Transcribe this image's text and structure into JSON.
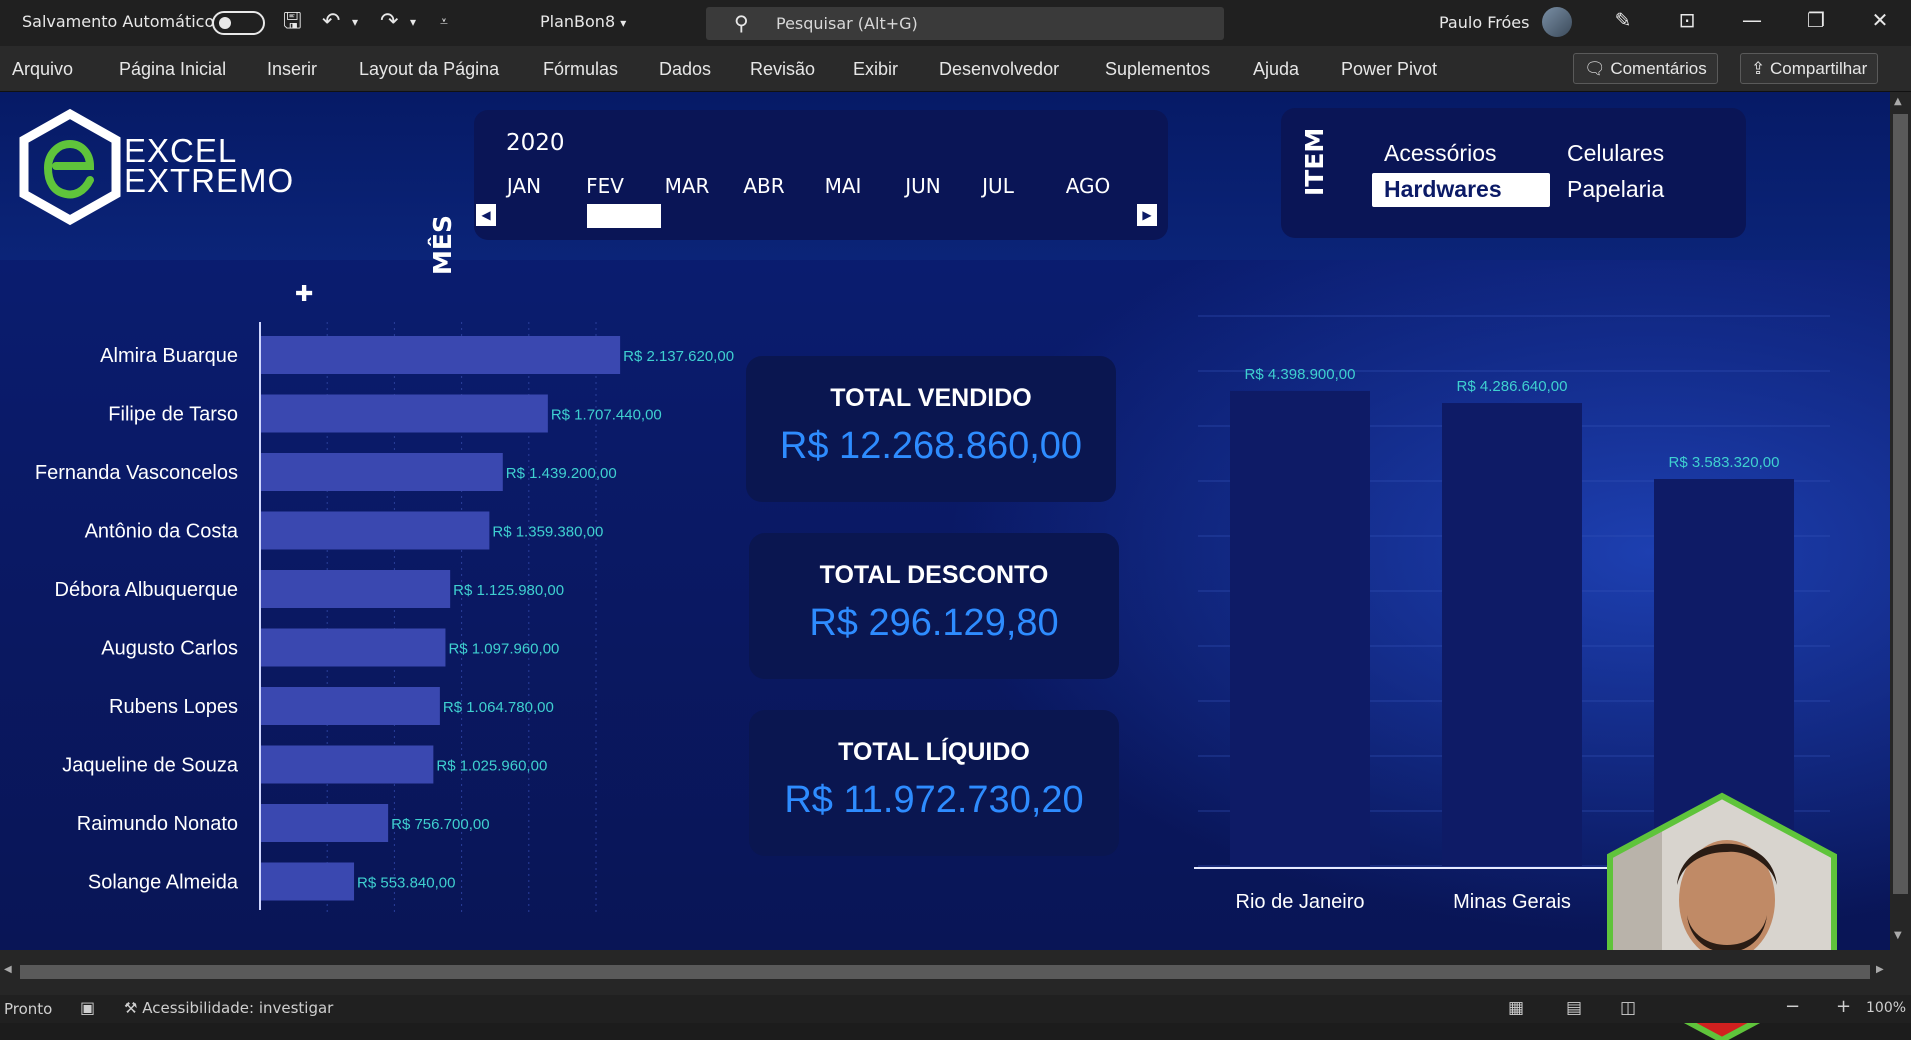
{
  "titlebar": {
    "autosave_label": "Salvamento Automático",
    "filename": "PlanBon8",
    "search_placeholder": "Pesquisar (Alt+G)",
    "user_name": "Paulo Fróes"
  },
  "ribbon": {
    "tabs": [
      "Arquivo",
      "Página Inicial",
      "Inserir",
      "Layout da Página",
      "Fórmulas",
      "Dados",
      "Revisão",
      "Exibir",
      "Desenvolvedor",
      "Suplementos",
      "Ajuda",
      "Power Pivot"
    ],
    "comments_label": "Comentários",
    "share_label": "Compartilhar"
  },
  "dashboard": {
    "logo_line1": "EXCEL",
    "logo_line2": "EXTREMO",
    "month_slicer_label": "MÊS",
    "year": "2020",
    "months": [
      "JAN",
      "FEV",
      "MAR",
      "ABR",
      "MAI",
      "JUN",
      "JUL",
      "AGO"
    ],
    "item_slicer_label": "ITEM",
    "items": [
      "Acessórios",
      "Celulares",
      "Hardwares",
      "Papelaria"
    ],
    "selected_item": "Hardwares",
    "kpis": [
      {
        "title": "TOTAL VENDIDO",
        "value": "R$ 12.268.860,00"
      },
      {
        "title": "TOTAL DESCONTO",
        "value": "R$ 296.129,80"
      },
      {
        "title": "TOTAL LÍQUIDO",
        "value": "R$ 11.972.730,20"
      }
    ]
  },
  "status": {
    "ready": "Pronto",
    "accessibility": "Acessibilidade: investigar",
    "zoom": "100%"
  },
  "colors": {
    "sheet_bg": "#0a1a68",
    "bar": "#3a48b0",
    "bar_label": "#3fd0d0",
    "kpi_value": "#2e8cff",
    "column": "#0e1b66",
    "brand_green": "#5fc43b"
  },
  "chart_data": [
    {
      "type": "bar",
      "orientation": "horizontal",
      "categories": [
        "Almira Buarque",
        "Filipe de Tarso",
        "Fernanda Vasconcelos",
        "Antônio da Costa",
        "Débora Albuquerque",
        "Augusto Carlos",
        "Rubens Lopes",
        "Jaqueline de Souza",
        "Raimundo Nonato",
        "Solange Almeida"
      ],
      "values": [
        2137620,
        1707440,
        1439200,
        1359380,
        1125980,
        1097960,
        1064780,
        1025960,
        756700,
        553840
      ],
      "labels": [
        "R$ 2.137.620,00",
        "R$ 1.707.440,00",
        "R$ 1.439.200,00",
        "R$ 1.359.380,00",
        "R$ 1.125.980,00",
        "R$ 1.097.960,00",
        "R$ 1.064.780,00",
        "R$ 1.025.960,00",
        "R$ 756.700,00",
        "R$ 553.840,00"
      ],
      "xlim": [
        0,
        2500000
      ],
      "grid": true
    },
    {
      "type": "bar",
      "orientation": "vertical",
      "categories": [
        "Rio de Janeiro",
        "Minas Gerais",
        ""
      ],
      "values": [
        4398900,
        4286640,
        3583320
      ],
      "labels": [
        "R$ 4.398.900,00",
        "R$ 4.286.640,00",
        "R$ 3.583.320,00"
      ],
      "ylim": [
        0,
        5000000
      ],
      "grid": true
    }
  ]
}
